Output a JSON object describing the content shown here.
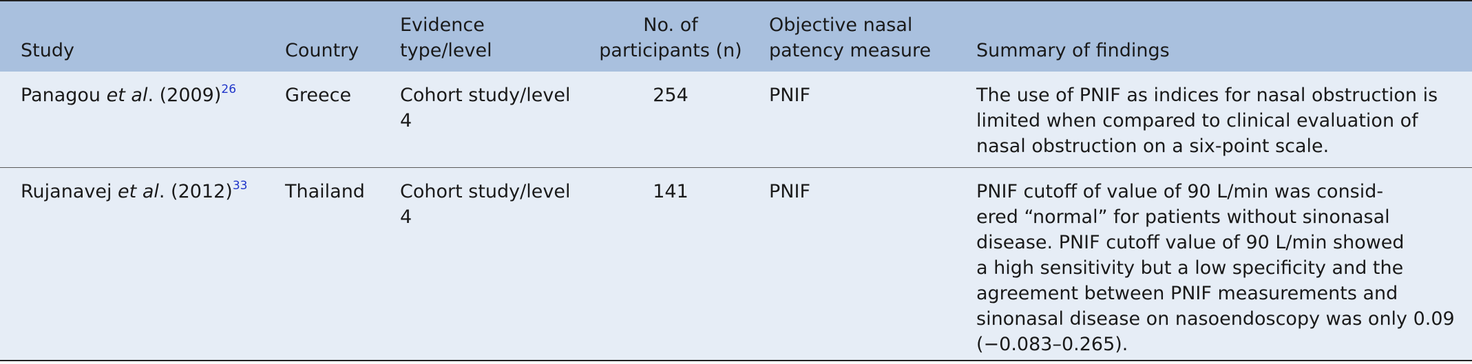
{
  "table": {
    "headers": {
      "study": "Study",
      "country": "Country",
      "evidence": "Evidence type/level",
      "participants_line1": "No. of",
      "participants_line2": "participants (n)",
      "measure_line1": "Objective nasal",
      "measure_line2": "patency measure",
      "summary": "Summary of findings"
    },
    "rows": [
      {
        "author": "Panagou ",
        "etal": "et al",
        "year": ". (2009)",
        "ref": "26",
        "country": "Greece",
        "evidence": "Cohort study/level 4",
        "participants": "254",
        "measure": "PNIF",
        "summary_lines": [
          "The use of PNIF as indices for nasal obstruction is",
          "limited when compared to clinical evaluation of",
          "nasal obstruction on a six-point scale."
        ]
      },
      {
        "author": "Rujanavej ",
        "etal": "et al",
        "year": ". (2012)",
        "ref": "33",
        "country": "Thailand",
        "evidence": "Cohort study/level 4",
        "participants": "141",
        "measure": "PNIF",
        "summary_lines": [
          "PNIF cutoff of value of 90 L/min was consid-",
          "ered “normal” for patients without sinonasal",
          "disease. PNIF cutoff value of 90 L/min showed",
          "a high sensitivity but a low specificity and the",
          "agreement between PNIF measurements and",
          "sinonasal disease on nasoendoscopy was only 0.09",
          "(−0.083–0.265)."
        ]
      }
    ]
  },
  "colors": {
    "header_bg": "#a9c0de",
    "body_bg": "#e6edf6",
    "ref_link": "#1f35c9"
  }
}
